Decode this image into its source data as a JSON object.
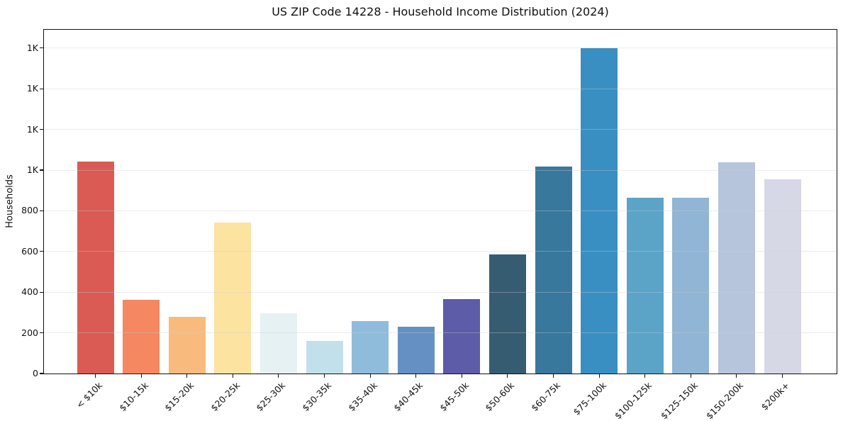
{
  "title": "US ZIP Code 14228 - Household Income Distribution (2024)",
  "colors": {
    "background": "#ffffff",
    "text": "#111111",
    "spine": "#111111",
    "grid": "#e9e9ef"
  },
  "chart_data": {
    "type": "bar",
    "title": "US ZIP Code 14228 - Household Income Distribution (2024)",
    "xlabel": "",
    "ylabel": "Households",
    "legend": "none",
    "grid": "horizontal, drawn faintly over bars",
    "ylim": [
      0,
      1690
    ],
    "ytick_values": [
      0,
      200,
      400,
      600,
      800,
      1000,
      1200,
      1400,
      1600
    ],
    "ytick_labels": [
      "0",
      "200",
      "400",
      "600",
      "800",
      "1K",
      "1K",
      "1K",
      "1K"
    ],
    "categories": [
      "< $10k",
      "$10-15k",
      "$15-20k",
      "$20-25k",
      "$25-30k",
      "$30-35k",
      "$35-40k",
      "$40-45k",
      "$45-50k",
      "$50-60k",
      "$60-75k",
      "$75-100k",
      "$100-125k",
      "$125-150k",
      "$150-200k",
      "$200k+"
    ],
    "values": [
      1042,
      362,
      279,
      742,
      296,
      160,
      258,
      230,
      366,
      587,
      1017,
      1600,
      864,
      864,
      1038,
      955
    ],
    "bar_colors": [
      "#d95b53",
      "#f58761",
      "#f9bb7d",
      "#fce3a0",
      "#e6f1f3",
      "#c2e0ec",
      "#8fbcdb",
      "#6590c3",
      "#5c5ca8",
      "#365c71",
      "#37789c",
      "#398fc2",
      "#5ba4c8",
      "#90b5d5",
      "#b6c5dc",
      "#d7d8e6"
    ]
  }
}
